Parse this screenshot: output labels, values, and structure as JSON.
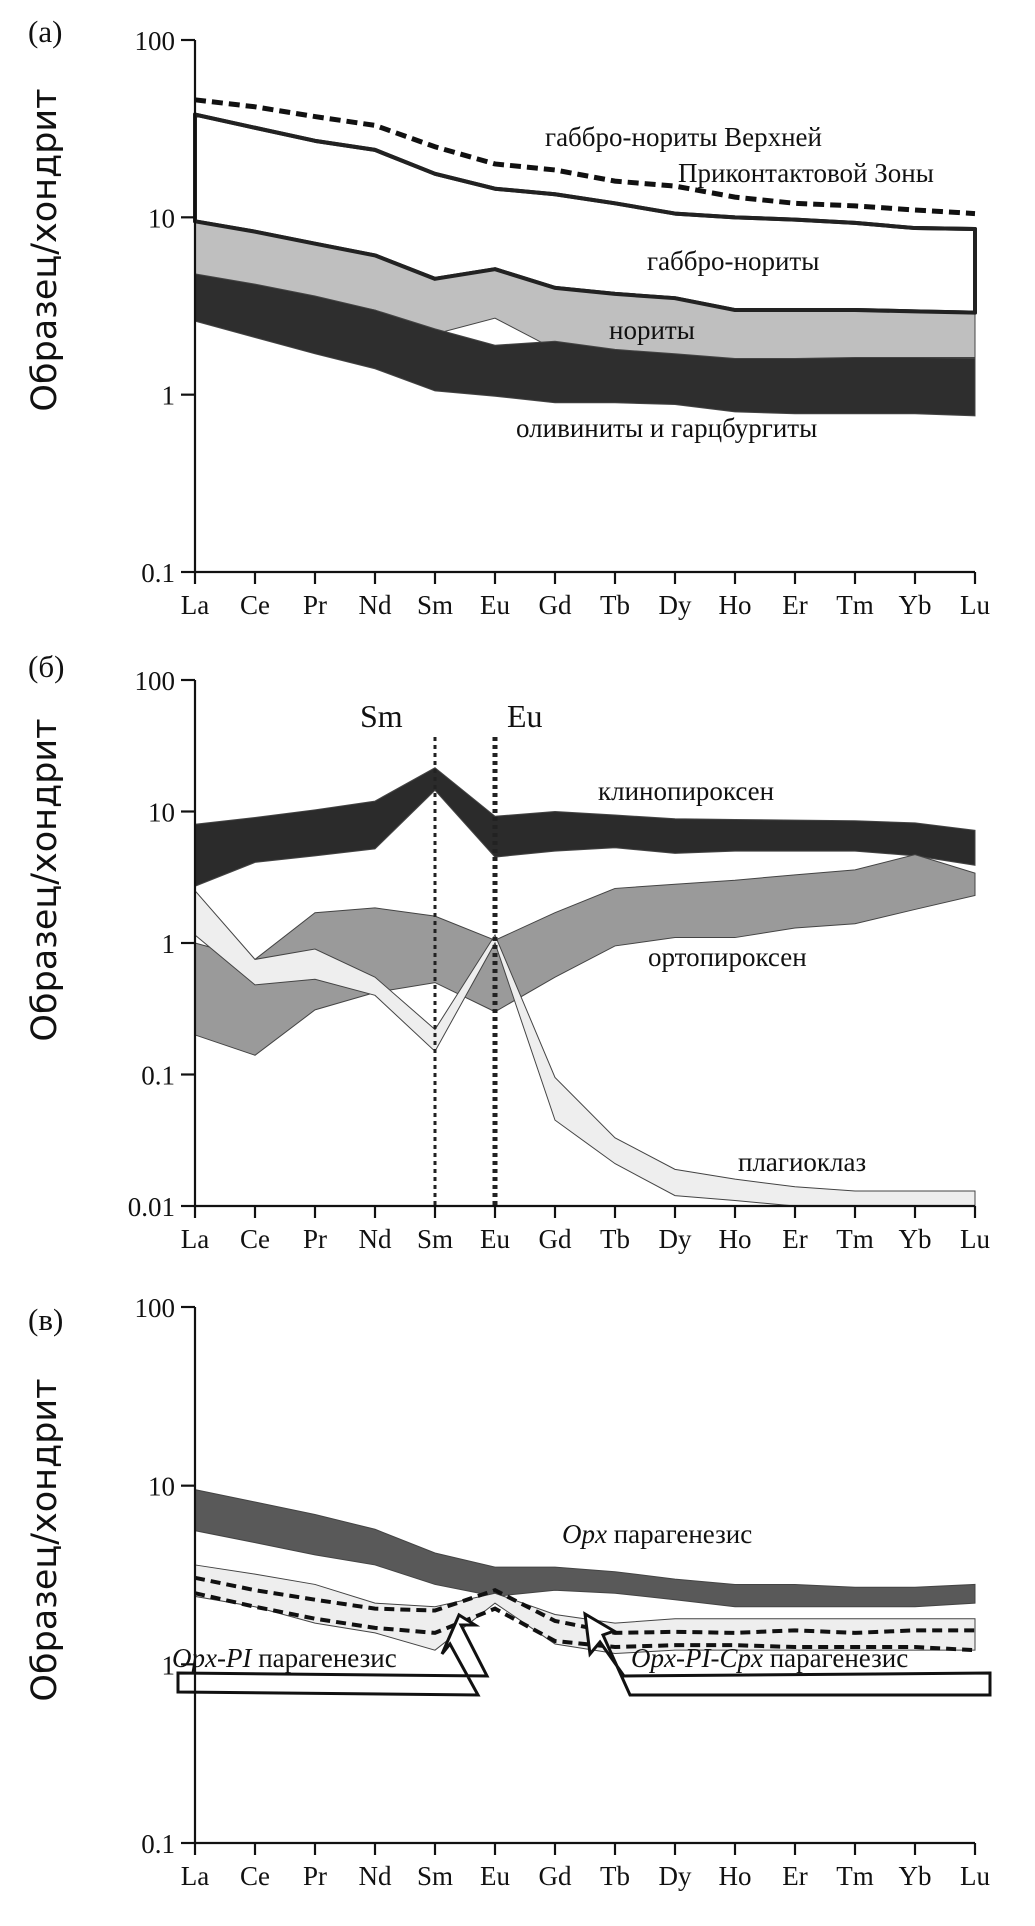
{
  "chart_data": [
    {
      "type": "area",
      "panel_label": "(а)",
      "ylabel": "Образец/хондрит",
      "yscale": "log",
      "ylim": [
        0.1,
        100
      ],
      "yticks": [
        "100",
        "10",
        "1",
        "0.1"
      ],
      "categories": [
        "La",
        "Ce",
        "Pr",
        "Nd",
        "Sm",
        "Eu",
        "Gd",
        "Tb",
        "Dy",
        "Ho",
        "Er",
        "Tm",
        "Yb",
        "Lu"
      ],
      "series": [
        {
          "name": "габбро-нориты Верхней Приконтактовой Зоны",
          "style": "dashed-line",
          "color": "#111111",
          "values": [
            46,
            42,
            37,
            33,
            25,
            20,
            18.5,
            16,
            15,
            13,
            12,
            11.6,
            11,
            10.5
          ]
        },
        {
          "name": "габбро-нориты",
          "style": "outlined-band",
          "color": "#ffffff",
          "upper": [
            38,
            32,
            27,
            24,
            17.6,
            14.5,
            13.5,
            12,
            10.5,
            10,
            9.7,
            9.3,
            8.7,
            8.6
          ],
          "lower": [
            9.5,
            8.3,
            7.1,
            6.1,
            4.5,
            5.1,
            4,
            3.7,
            3.5,
            3,
            3,
            3,
            2.95,
            2.9
          ]
        },
        {
          "name": "нориты",
          "style": "band",
          "color": "#bfbfbf",
          "upper": [
            9.5,
            8.3,
            7.1,
            6.1,
            4.5,
            5.1,
            4,
            3.7,
            3.5,
            3,
            3,
            3,
            2.95,
            2.9
          ],
          "lower": [
            4.6,
            4.1,
            3.5,
            3,
            2.2,
            2.7,
            1.8,
            1.65,
            1.55,
            1.55,
            1.58,
            1.6,
            1.62,
            1.62
          ]
        },
        {
          "name": "оливиниты и гарцбургиты",
          "style": "band",
          "color": "#2e2e2e",
          "upper": [
            4.8,
            4.2,
            3.6,
            3,
            2.35,
            1.9,
            2,
            1.8,
            1.7,
            1.6,
            1.6,
            1.62,
            1.62,
            1.6
          ],
          "lower": [
            2.6,
            2.1,
            1.7,
            1.4,
            1.05,
            0.98,
            0.9,
            0.9,
            0.88,
            0.8,
            0.78,
            0.78,
            0.78,
            0.76
          ]
        }
      ],
      "annotations": [
        "габбро-нориты Верхней",
        "Приконтактовой Зоны",
        "габбро-нориты",
        "нориты",
        "оливиниты и гарцбургиты"
      ]
    },
    {
      "type": "area",
      "panel_label": "(б)",
      "ylabel": "Образец/хондрит",
      "yscale": "log",
      "ylim": [
        0.01,
        100
      ],
      "yticks": [
        "100",
        "10",
        "1",
        "0.1",
        "0.01"
      ],
      "categories": [
        "La",
        "Ce",
        "Pr",
        "Nd",
        "Sm",
        "Eu",
        "Gd",
        "Tb",
        "Dy",
        "Ho",
        "Er",
        "Tm",
        "Yb",
        "Lu"
      ],
      "vlines": [
        {
          "label": "Sm",
          "at": "Sm"
        },
        {
          "label": "Eu",
          "at": "Eu"
        }
      ],
      "series": [
        {
          "name": "клинопироксен",
          "style": "band",
          "color": "#2b2b2b",
          "upper": [
            8,
            9,
            10.3,
            12,
            21.5,
            9.2,
            10,
            9.4,
            8.8,
            8.7,
            8.6,
            8.5,
            8.2,
            7.2
          ],
          "lower": [
            2.7,
            4.1,
            4.6,
            5.2,
            14.5,
            4.5,
            5,
            5.3,
            4.8,
            5,
            5,
            5,
            4.6,
            3.9
          ]
        },
        {
          "name": "ортопироксен",
          "style": "band",
          "color": "#9a9a9a",
          "upper": [
            1,
            0.75,
            1.7,
            1.85,
            1.6,
            1.05,
            1.7,
            2.6,
            2.8,
            3,
            3.3,
            3.6,
            4.7,
            3.4
          ],
          "lower": [
            0.2,
            0.14,
            0.31,
            0.42,
            0.5,
            0.3,
            0.55,
            0.95,
            1.1,
            1.1,
            1.3,
            1.4,
            1.8,
            2.3
          ]
        },
        {
          "name": "плагиоклаз",
          "style": "band",
          "color": "#eeeeee",
          "upper": [
            2.5,
            0.75,
            0.9,
            0.55,
            0.22,
            1.15,
            0.095,
            0.033,
            0.019,
            0.016,
            0.014,
            0.013,
            0.013,
            0.013
          ],
          "lower": [
            1.15,
            0.48,
            0.53,
            0.4,
            0.15,
            1.0,
            0.045,
            0.021,
            0.012,
            0.011,
            0.01,
            0.01,
            0.01,
            0.01
          ]
        }
      ],
      "annotations": [
        "клинопироксен",
        "ортопироксен",
        "плагиоклаз"
      ]
    },
    {
      "type": "area",
      "panel_label": "(в)",
      "ylabel": "Образец/хондрит",
      "yscale": "log",
      "ylim": [
        0.1,
        100
      ],
      "yticks": [
        "100",
        "10",
        "1",
        "0.1"
      ],
      "categories": [
        "La",
        "Ce",
        "Pr",
        "Nd",
        "Sm",
        "Eu",
        "Gd",
        "Tb",
        "Dy",
        "Ho",
        "Er",
        "Tm",
        "Yb",
        "Lu"
      ],
      "series": [
        {
          "name": "Orx парагенезис",
          "style": "band",
          "color": "#595959",
          "upper": [
            9.5,
            8.1,
            6.9,
            5.7,
            4.2,
            3.5,
            3.5,
            3.3,
            3,
            2.8,
            2.8,
            2.7,
            2.7,
            2.8
          ],
          "lower": [
            5.6,
            4.8,
            4.1,
            3.6,
            2.8,
            2.4,
            2.6,
            2.5,
            2.3,
            2.1,
            2.1,
            2.1,
            2.1,
            2.2
          ]
        },
        {
          "name": "Opx-Pl парагенезис",
          "style": "band",
          "color": "#eeeeee",
          "upper": [
            3.6,
            3.2,
            2.8,
            2.2,
            2.1,
            2.5,
            1.9,
            1.7,
            1.8,
            1.8,
            1.8,
            1.8,
            1.8,
            1.8
          ],
          "lower": [
            2.4,
            2.1,
            1.7,
            1.5,
            1.2,
            2.2,
            1.3,
            1.15,
            1.2,
            1.2,
            1.2,
            1.2,
            1.2,
            1.2
          ]
        },
        {
          "name": "Opx-Pl парагенезис (dashed)",
          "style": "dashed-pair",
          "color": "#111111",
          "upper": [
            3.05,
            2.6,
            2.3,
            2.05,
            2,
            2.6,
            1.75,
            1.5,
            1.52,
            1.5,
            1.55,
            1.5,
            1.55,
            1.55
          ],
          "lower": [
            2.5,
            2.1,
            1.8,
            1.6,
            1.5,
            2.05,
            1.35,
            1.25,
            1.28,
            1.28,
            1.25,
            1.25,
            1.25,
            1.2
          ]
        }
      ],
      "annotations": [
        {
          "italic": "Opx",
          "text": " парагенезис"
        },
        {
          "italic": "Opx-PI",
          "text": " парагенезис"
        },
        {
          "italic": "Opx-PI-Cpx",
          "text": " парагенезис"
        }
      ]
    }
  ]
}
